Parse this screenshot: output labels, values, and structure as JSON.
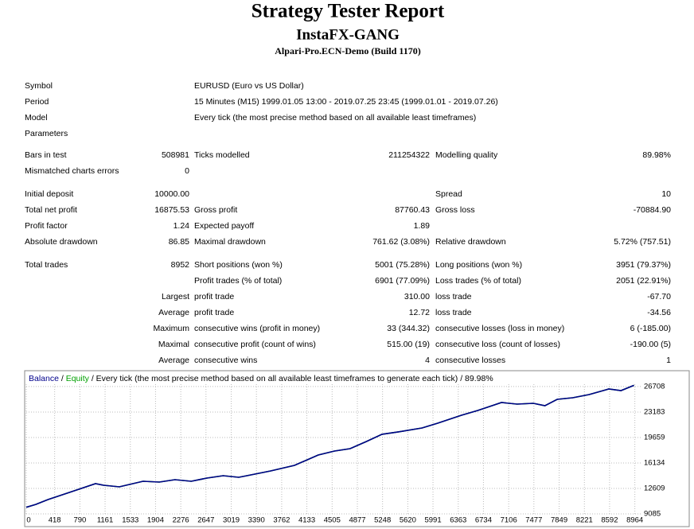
{
  "header": {
    "title": "Strategy Tester Report",
    "subtitle": "InstaFX-GANG",
    "server": "Alpari-Pro.ECN-Demo (Build 1170)"
  },
  "rows": [
    {
      "a": "Symbol",
      "wide": "EURUSD (Euro vs US Dollar)"
    },
    {
      "a": "Period",
      "wide": "15 Minutes (M15) 1999.01.05 13:00 - 2019.07.25 23:45 (1999.01.01 - 2019.07.26)"
    },
    {
      "a": "Model",
      "wide": "Every tick (the most precise method based on all available least timeframes)"
    },
    {
      "a": "Parameters"
    },
    {
      "a": "Bars in test",
      "b": "508981",
      "c": "Ticks modelled",
      "d": "211254322",
      "e": "Modelling quality",
      "f": "89.98%"
    },
    {
      "a": "Mismatched charts errors",
      "b": "0"
    },
    {
      "a": "Initial deposit",
      "b": "10000.00",
      "e": "Spread",
      "f": "10"
    },
    {
      "a": "Total net profit",
      "b": "16875.53",
      "c": "Gross profit",
      "d": "87760.43",
      "e": "Gross loss",
      "f": "-70884.90"
    },
    {
      "a": "Profit factor",
      "b": "1.24",
      "c": "Expected payoff",
      "d": "1.89"
    },
    {
      "a": "Absolute drawdown",
      "b": "86.85",
      "c": "Maximal drawdown",
      "d": "761.62 (3.08%)",
      "e": "Relative drawdown",
      "f": "5.72% (757.51)"
    },
    {
      "a": "Total trades",
      "b": "8952",
      "c": "Short positions (won %)",
      "d": "5001 (75.28%)",
      "e": "Long positions (won %)",
      "f": "3951 (79.37%)"
    },
    {
      "c": "Profit trades (% of total)",
      "d": "6901 (77.09%)",
      "e": "Loss trades (% of total)",
      "f": "2051 (22.91%)"
    },
    {
      "b": "Largest",
      "c": "profit trade",
      "d": "310.00",
      "e": "loss trade",
      "f": "-67.70"
    },
    {
      "b": "Average",
      "c": "profit trade",
      "d": "12.72",
      "e": "loss trade",
      "f": "-34.56"
    },
    {
      "b": "Maximum",
      "c": "consecutive wins (profit in money)",
      "d": "33 (344.32)",
      "e": "consecutive losses (loss in money)",
      "f": "6 (-185.00)"
    },
    {
      "b": "Maximal",
      "c": "consecutive profit (count of wins)",
      "d": "515.00 (19)",
      "e": "consecutive loss (count of losses)",
      "f": "-190.00 (5)"
    },
    {
      "b": "Average",
      "c": "consecutive wins",
      "d": "4",
      "e": "consecutive losses",
      "f": "1"
    }
  ],
  "chart_data": {
    "type": "line",
    "caption": "Every tick (the most precise method based on all available least timeframes to generate each tick) / 89.98%",
    "x": [
      0,
      140,
      320,
      670,
      1020,
      1140,
      1370,
      1720,
      1960,
      2190,
      2430,
      2660,
      2900,
      3130,
      3250,
      3600,
      3950,
      4300,
      4540,
      4770,
      5010,
      5240,
      5480,
      5830,
      6060,
      6410,
      6650,
      7000,
      7230,
      7470,
      7640,
      7820,
      8050,
      8290,
      8580,
      8760,
      8952
    ],
    "series": [
      {
        "name": "Equity",
        "color": "#00a000",
        "values": [
          10000,
          10400,
          11070,
          12170,
          13270,
          13050,
          12830,
          13600,
          13490,
          13820,
          13600,
          14040,
          14370,
          14150,
          14370,
          15030,
          15800,
          17230,
          17780,
          18110,
          19100,
          20100,
          20430,
          20980,
          21640,
          22740,
          23400,
          24500,
          24280,
          24390,
          24060,
          24940,
          25160,
          25600,
          26370,
          26150,
          26876
        ]
      },
      {
        "name": "Balance",
        "color": "#00008b",
        "values": [
          10000,
          10400,
          11070,
          12170,
          13270,
          13050,
          12830,
          13600,
          13490,
          13820,
          13600,
          14040,
          14370,
          14150,
          14370,
          15030,
          15800,
          17230,
          17780,
          18110,
          19100,
          20100,
          20430,
          20980,
          21640,
          22740,
          23400,
          24500,
          24280,
          24390,
          24060,
          24940,
          25160,
          25600,
          26370,
          26150,
          26876
        ]
      }
    ],
    "xlim": [
      0,
      9050
    ],
    "xticks": [
      0,
      418,
      790,
      1161,
      1533,
      1904,
      2276,
      2647,
      3019,
      3390,
      3762,
      4133,
      4505,
      4877,
      5248,
      5620,
      5991,
      6363,
      6734,
      7106,
      7477,
      7849,
      8221,
      8592,
      8964
    ],
    "ylim": [
      9085,
      27030
    ],
    "yticks": [
      26708,
      23183,
      19659,
      16134,
      12609,
      9085
    ],
    "grid": true
  }
}
